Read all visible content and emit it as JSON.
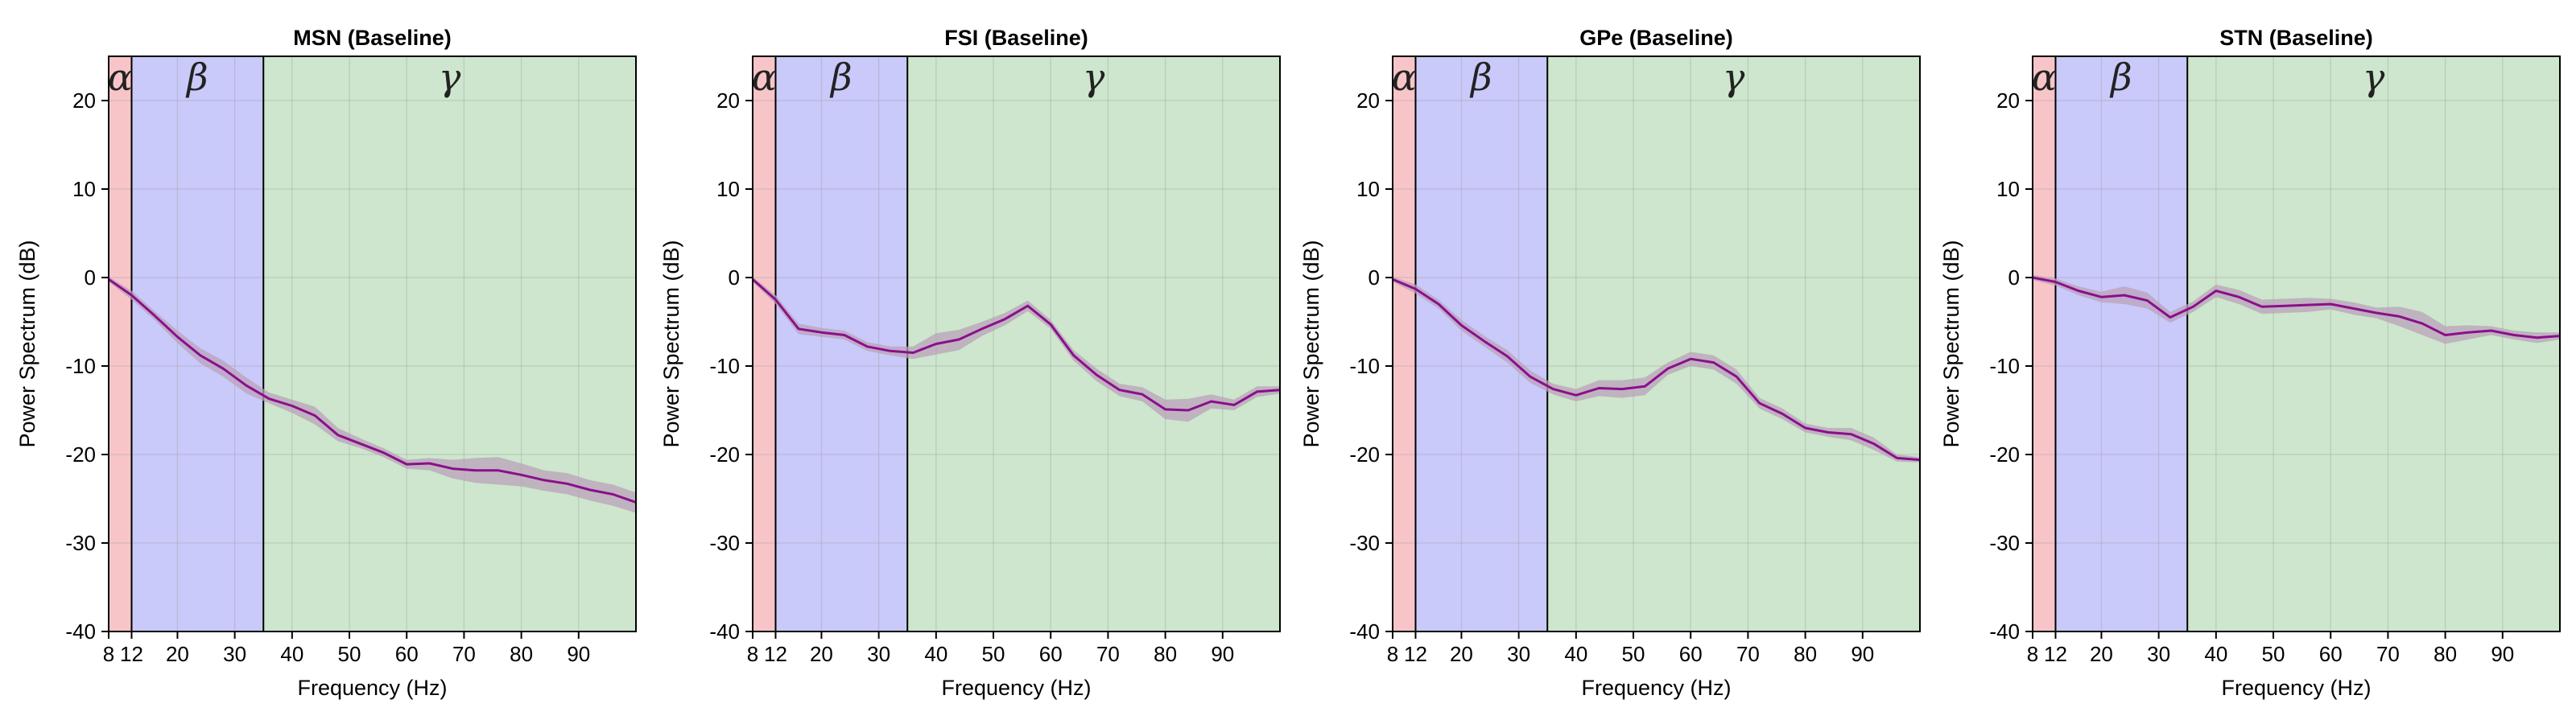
{
  "chart_data": [
    {
      "type": "line",
      "title": "MSN (Baseline)",
      "xlabel": "Frequency (Hz)",
      "ylabel": "Power Spectrum (dB)",
      "xlim": [
        8,
        100
      ],
      "ylim": [
        -40,
        25
      ],
      "xticks": [
        8,
        12,
        20,
        30,
        40,
        50,
        60,
        70,
        80,
        90
      ],
      "yticks": [
        -40,
        -30,
        -20,
        -10,
        0,
        10,
        20
      ],
      "grid": true,
      "bands": [
        {
          "label": "α",
          "from": 8,
          "to": 12,
          "color": "#f7c5c8"
        },
        {
          "label": "β",
          "from": 12,
          "to": 35,
          "color": "#c9c9fa"
        },
        {
          "label": "γ",
          "from": 35,
          "to": 100,
          "color": "#cde6cd"
        }
      ],
      "series": [
        {
          "x": [
            8,
            12,
            16,
            20,
            24,
            28,
            32,
            36,
            40,
            44,
            48,
            52,
            56,
            60,
            64,
            68,
            72,
            76,
            80,
            84,
            88,
            92,
            96,
            100
          ],
          "y": [
            -0.2,
            -2.0,
            -4.3,
            -6.7,
            -8.8,
            -10.3,
            -12.2,
            -13.7,
            -14.5,
            -15.6,
            -17.8,
            -18.8,
            -19.8,
            -21.1,
            -21.0,
            -21.6,
            -21.8,
            -21.8,
            -22.3,
            -22.9,
            -23.3,
            -24.0,
            -24.5,
            -25.4
          ],
          "y_lower": [
            -0.5,
            -2.5,
            -4.8,
            -7.4,
            -9.7,
            -11.2,
            -13.1,
            -14.2,
            -15.3,
            -16.6,
            -18.5,
            -19.3,
            -20.3,
            -21.6,
            -21.8,
            -22.7,
            -23.2,
            -23.4,
            -23.6,
            -24.1,
            -24.5,
            -25.2,
            -25.8,
            -26.6
          ],
          "y_upper": [
            0.1,
            -1.5,
            -3.8,
            -6.0,
            -8.0,
            -9.4,
            -11.3,
            -13.0,
            -13.8,
            -14.6,
            -17.0,
            -18.2,
            -19.3,
            -20.6,
            -20.4,
            -20.6,
            -20.4,
            -20.3,
            -21.0,
            -21.8,
            -22.1,
            -22.9,
            -23.4,
            -24.3
          ]
        }
      ]
    },
    {
      "type": "line",
      "title": "FSI (Baseline)",
      "xlabel": "Frequency (Hz)",
      "ylabel": "Power Spectrum (dB)",
      "xlim": [
        8,
        100
      ],
      "ylim": [
        -40,
        25
      ],
      "xticks": [
        8,
        12,
        20,
        30,
        40,
        50,
        60,
        70,
        80,
        90
      ],
      "yticks": [
        -40,
        -30,
        -20,
        -10,
        0,
        10,
        20
      ],
      "grid": true,
      "bands": [
        {
          "label": "α",
          "from": 8,
          "to": 12,
          "color": "#f7c5c8"
        },
        {
          "label": "β",
          "from": 12,
          "to": 35,
          "color": "#c9c9fa"
        },
        {
          "label": "γ",
          "from": 35,
          "to": 100,
          "color": "#cde6cd"
        }
      ],
      "series": [
        {
          "x": [
            8,
            12,
            16,
            20,
            24,
            28,
            32,
            36,
            40,
            44,
            48,
            52,
            56,
            60,
            64,
            68,
            72,
            76,
            80,
            84,
            88,
            92,
            96,
            100
          ],
          "y": [
            -0.2,
            -2.5,
            -5.8,
            -6.2,
            -6.5,
            -7.8,
            -8.3,
            -8.5,
            -7.5,
            -7.0,
            -5.8,
            -4.7,
            -3.2,
            -5.3,
            -8.8,
            -11.0,
            -12.7,
            -13.2,
            -14.9,
            -15.0,
            -14.0,
            -14.4,
            -12.9,
            -12.7
          ],
          "y_lower": [
            -0.5,
            -3.0,
            -6.4,
            -6.7,
            -7.0,
            -8.3,
            -8.8,
            -9.2,
            -8.7,
            -8.2,
            -6.6,
            -5.4,
            -3.8,
            -5.8,
            -9.4,
            -11.7,
            -13.4,
            -14.0,
            -16.0,
            -16.3,
            -14.8,
            -15.0,
            -13.5,
            -13.1
          ],
          "y_upper": [
            0.1,
            -2.0,
            -5.2,
            -5.7,
            -6.0,
            -7.3,
            -7.8,
            -7.8,
            -6.3,
            -5.9,
            -5.0,
            -4.0,
            -2.6,
            -4.8,
            -8.2,
            -10.3,
            -12.0,
            -12.4,
            -13.8,
            -13.7,
            -13.2,
            -13.8,
            -12.3,
            -12.3
          ]
        }
      ]
    },
    {
      "type": "line",
      "title": "GPe (Baseline)",
      "xlabel": "Frequency (Hz)",
      "ylabel": "Power Spectrum (dB)",
      "xlim": [
        8,
        100
      ],
      "ylim": [
        -40,
        25
      ],
      "xticks": [
        8,
        12,
        20,
        30,
        40,
        50,
        60,
        70,
        80,
        90
      ],
      "yticks": [
        -40,
        -30,
        -20,
        -10,
        0,
        10,
        20
      ],
      "grid": true,
      "bands": [
        {
          "label": "α",
          "from": 8,
          "to": 12,
          "color": "#f7c5c8"
        },
        {
          "label": "β",
          "from": 12,
          "to": 35,
          "color": "#c9c9fa"
        },
        {
          "label": "γ",
          "from": 35,
          "to": 100,
          "color": "#cde6cd"
        }
      ],
      "series": [
        {
          "x": [
            8,
            12,
            16,
            20,
            24,
            28,
            32,
            36,
            40,
            44,
            48,
            52,
            56,
            60,
            64,
            68,
            72,
            76,
            80,
            84,
            88,
            92,
            96,
            100
          ],
          "y": [
            -0.2,
            -1.3,
            -3.0,
            -5.4,
            -7.2,
            -8.9,
            -11.2,
            -12.6,
            -13.3,
            -12.5,
            -12.6,
            -12.3,
            -10.3,
            -9.2,
            -9.6,
            -11.2,
            -14.2,
            -15.4,
            -17.0,
            -17.5,
            -17.7,
            -18.8,
            -20.4,
            -20.6
          ],
          "y_lower": [
            -0.5,
            -1.8,
            -3.5,
            -6.0,
            -7.8,
            -9.6,
            -11.9,
            -13.2,
            -14.0,
            -13.4,
            -13.6,
            -13.3,
            -11.0,
            -10.0,
            -10.4,
            -12.0,
            -14.8,
            -16.0,
            -17.5,
            -18.0,
            -18.4,
            -19.5,
            -20.8,
            -20.9
          ],
          "y_upper": [
            0.1,
            -0.8,
            -2.5,
            -4.8,
            -6.6,
            -8.2,
            -10.5,
            -12.0,
            -12.6,
            -11.6,
            -11.6,
            -11.3,
            -9.6,
            -8.4,
            -8.8,
            -10.4,
            -13.6,
            -14.8,
            -16.5,
            -17.0,
            -17.0,
            -18.1,
            -20.0,
            -20.3
          ]
        }
      ]
    },
    {
      "type": "line",
      "title": "STN (Baseline)",
      "xlabel": "Frequency (Hz)",
      "ylabel": "Power Spectrum (dB)",
      "xlim": [
        8,
        100
      ],
      "ylim": [
        -40,
        25
      ],
      "xticks": [
        8,
        12,
        20,
        30,
        40,
        50,
        60,
        70,
        80,
        90
      ],
      "yticks": [
        -40,
        -30,
        -20,
        -10,
        0,
        10,
        20
      ],
      "grid": true,
      "bands": [
        {
          "label": "α",
          "from": 8,
          "to": 12,
          "color": "#f7c5c8"
        },
        {
          "label": "β",
          "from": 12,
          "to": 35,
          "color": "#c9c9fa"
        },
        {
          "label": "γ",
          "from": 35,
          "to": 100,
          "color": "#cde6cd"
        }
      ],
      "series": [
        {
          "x": [
            8,
            12,
            16,
            20,
            24,
            28,
            32,
            36,
            40,
            44,
            48,
            52,
            56,
            60,
            64,
            68,
            72,
            76,
            80,
            84,
            88,
            92,
            96,
            100
          ],
          "y": [
            0.0,
            -0.5,
            -1.5,
            -2.2,
            -2.0,
            -2.6,
            -4.5,
            -3.3,
            -1.5,
            -2.2,
            -3.3,
            -3.2,
            -3.1,
            -3.0,
            -3.5,
            -4.0,
            -4.4,
            -5.2,
            -6.5,
            -6.2,
            -6.0,
            -6.5,
            -6.8,
            -6.6
          ],
          "y_lower": [
            -0.3,
            -0.9,
            -2.0,
            -2.8,
            -3.0,
            -3.5,
            -5.1,
            -3.9,
            -2.2,
            -3.0,
            -4.1,
            -4.0,
            -3.9,
            -3.6,
            -4.2,
            -4.6,
            -5.5,
            -6.5,
            -7.5,
            -7.0,
            -6.5,
            -7.0,
            -7.4,
            -7.0
          ],
          "y_upper": [
            0.3,
            -0.1,
            -1.0,
            -1.6,
            -1.0,
            -1.7,
            -3.9,
            -2.7,
            -0.8,
            -1.4,
            -2.5,
            -2.4,
            -2.3,
            -2.4,
            -2.8,
            -3.4,
            -3.3,
            -3.9,
            -5.5,
            -5.4,
            -5.5,
            -6.0,
            -6.2,
            -6.2
          ]
        }
      ]
    }
  ],
  "colors": {
    "line": "#8b0f8b",
    "ci_fill": "#b9a1b9",
    "grid": "#9a9a9a",
    "axis": "#000000"
  }
}
